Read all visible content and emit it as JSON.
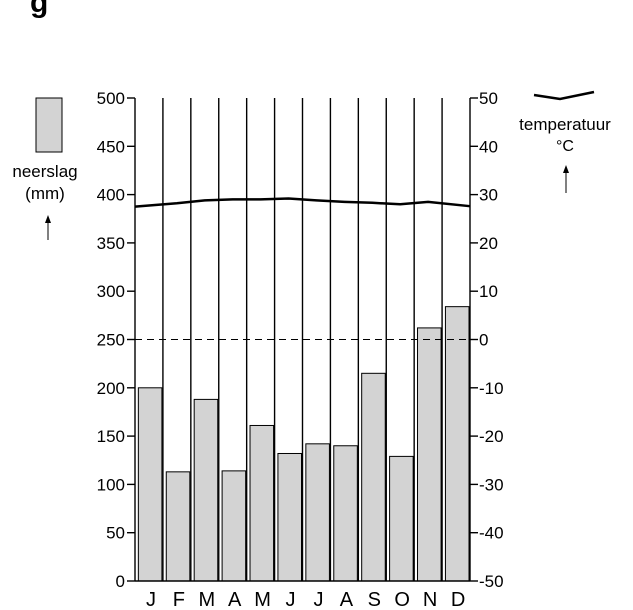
{
  "page_title": "g",
  "chart_data": {
    "type": "bar",
    "categories": [
      "J",
      "F",
      "M",
      "A",
      "M",
      "J",
      "J",
      "A",
      "S",
      "O",
      "N",
      "D"
    ],
    "series": [
      {
        "name": "neerslag",
        "unit": "(mm)",
        "axis": "left",
        "type": "bar",
        "values": [
          200,
          113,
          188,
          114,
          161,
          132,
          142,
          140,
          215,
          129,
          262,
          284
        ]
      },
      {
        "name": "temperatuur",
        "unit": "°C",
        "axis": "right",
        "type": "line",
        "values": [
          27.5,
          28.2,
          28.8,
          29,
          29,
          29.2,
          28.8,
          28.5,
          28.3,
          28,
          28.5,
          27.6
        ]
      }
    ],
    "left_axis": {
      "label": "neerslag",
      "unit": "(mm)",
      "ylim": [
        0,
        500
      ],
      "ticks": [
        "0",
        "50",
        "100",
        "150",
        "200",
        "250",
        "300",
        "350",
        "400",
        "450",
        "500"
      ]
    },
    "right_axis": {
      "label": "temperatuur",
      "unit": "°C",
      "ylim": [
        -50,
        50
      ],
      "ticks": [
        "-50",
        "-40",
        "-30",
        "-20",
        "-10",
        "0",
        "10",
        "20",
        "30",
        "40",
        "50"
      ]
    },
    "grid": "vertical lines at month boundaries; dashed line at 0 °C",
    "legend": {
      "precip_label": "neerslag",
      "precip_unit": "(mm)",
      "temp_label": "temperatuur",
      "temp_unit": "°C"
    },
    "colors": {
      "bar": "#d3d3d3",
      "line": "#000000"
    }
  }
}
